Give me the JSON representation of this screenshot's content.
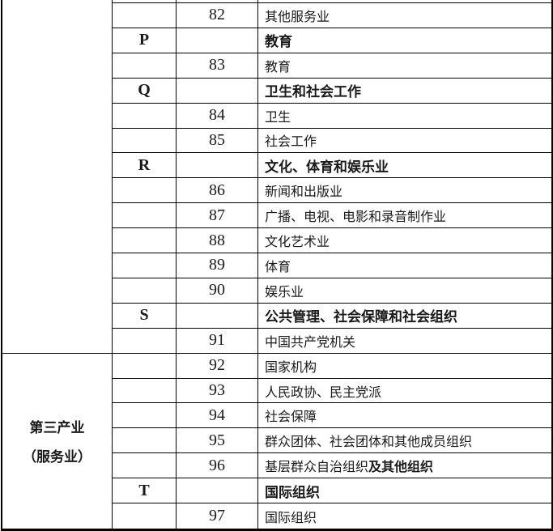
{
  "table": {
    "category": {
      "line1": "第三产业",
      "line2": "（服务业）"
    },
    "rows": [
      {
        "letter": "",
        "code": "82",
        "name": "其他服务业",
        "bold": false
      },
      {
        "letter": "P",
        "code": "",
        "name": "教育",
        "bold": true
      },
      {
        "letter": "",
        "code": "83",
        "name": "教育",
        "bold": false
      },
      {
        "letter": "Q",
        "code": "",
        "name": "卫生和社会工作",
        "bold": true
      },
      {
        "letter": "",
        "code": "84",
        "name": "卫生",
        "bold": false
      },
      {
        "letter": "",
        "code": "85",
        "name": "社会工作",
        "bold": false
      },
      {
        "letter": "R",
        "code": "",
        "name": "文化、体育和娱乐业",
        "bold": true
      },
      {
        "letter": "",
        "code": "86",
        "name": "新闻和出版业",
        "bold": false
      },
      {
        "letter": "",
        "code": "87",
        "name": "广播、电视、电影和录音制作业",
        "bold": false
      },
      {
        "letter": "",
        "code": "88",
        "name": "文化艺术业",
        "bold": false
      },
      {
        "letter": "",
        "code": "89",
        "name": "体育",
        "bold": false
      },
      {
        "letter": "",
        "code": "90",
        "name": "娱乐业",
        "bold": false
      },
      {
        "letter": "S",
        "code": "",
        "name": "公共管理、社会保障和社会组织",
        "bold": true
      },
      {
        "letter": "",
        "code": "91",
        "name": "中国共产党机关",
        "bold": false
      },
      {
        "letter": "",
        "code": "92",
        "name": "国家机构",
        "bold": false
      },
      {
        "letter": "",
        "code": "93",
        "name": "人民政协、民主党派",
        "bold": false
      },
      {
        "letter": "",
        "code": "94",
        "name": "社会保障",
        "bold": false
      },
      {
        "letter": "",
        "code": "95",
        "name": "群众团体、社会团体和其他成员组织",
        "bold": false
      },
      {
        "letter": "",
        "code": "96",
        "name": "基层群众自治组织",
        "name_bold": "及其他组织",
        "bold": false
      },
      {
        "letter": "T",
        "code": "",
        "name": "国际组织",
        "bold": true
      },
      {
        "letter": "",
        "code": "97",
        "name": "国际组织",
        "bold": false
      }
    ],
    "colors": {
      "border": "#000000",
      "text": "#1a1a1a",
      "background": "#ffffff"
    }
  }
}
